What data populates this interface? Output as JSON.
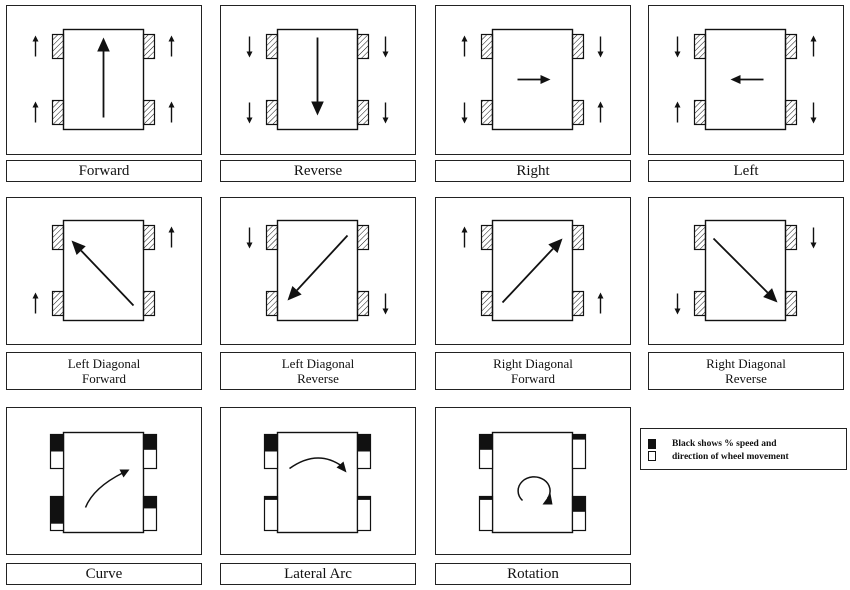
{
  "panels": [
    {
      "id": "forward",
      "caption": [
        "Forward"
      ],
      "style": "hatch",
      "arrow": "straight-up",
      "wheels": [
        "up",
        "up",
        "up",
        "up"
      ]
    },
    {
      "id": "reverse",
      "caption": [
        "Reverse"
      ],
      "style": "hatch",
      "arrow": "straight-down",
      "wheels": [
        "down",
        "down",
        "down",
        "down"
      ]
    },
    {
      "id": "right",
      "caption": [
        "Right"
      ],
      "style": "hatch",
      "arrow": "straight-right",
      "wheels": [
        "up",
        "down",
        "down",
        "up"
      ]
    },
    {
      "id": "left",
      "caption": [
        "Left"
      ],
      "style": "hatch",
      "arrow": "straight-left",
      "wheels": [
        "down",
        "up",
        "up",
        "down"
      ]
    },
    {
      "id": "left-diagonal-forward",
      "caption": [
        "Left Diagonal",
        "Forward"
      ],
      "style": "hatch",
      "arrow": "diag-up-left",
      "wheels": [
        "none",
        "up",
        "up",
        "none"
      ]
    },
    {
      "id": "left-diagonal-reverse",
      "caption": [
        "Left Diagonal",
        "Reverse"
      ],
      "style": "hatch",
      "arrow": "diag-down-left",
      "wheels": [
        "down",
        "none",
        "none",
        "down"
      ]
    },
    {
      "id": "right-diagonal-forward",
      "caption": [
        "Right Diagonal",
        "Forward"
      ],
      "style": "hatch",
      "arrow": "diag-up-right",
      "wheels": [
        "up",
        "none",
        "none",
        "up"
      ]
    },
    {
      "id": "right-diagonal-reverse",
      "caption": [
        "Right Diagonal",
        "Reverse"
      ],
      "style": "hatch",
      "arrow": "diag-down-right",
      "wheels": [
        "none",
        "down",
        "down",
        "none"
      ]
    },
    {
      "id": "curve",
      "caption": [
        "Curve"
      ],
      "style": "bw",
      "arrow": "curve",
      "fills": [
        0.5,
        0.45,
        0.8,
        0.35
      ]
    },
    {
      "id": "lateral-arc",
      "caption": [
        "Lateral Arc"
      ],
      "style": "bw",
      "arrow": "arc",
      "fills": [
        0.5,
        0.5,
        0.1,
        0.1
      ]
    },
    {
      "id": "rotation",
      "caption": [
        "Rotation"
      ],
      "style": "bw",
      "arrow": "rotation",
      "fills": [
        0.45,
        0.15,
        0.1,
        0.45
      ]
    }
  ],
  "legend": {
    "line1": "Black shows % speed and",
    "line2": "direction of wheel movement"
  },
  "colors": {
    "ink": "#111111",
    "paper": "#ffffff"
  }
}
